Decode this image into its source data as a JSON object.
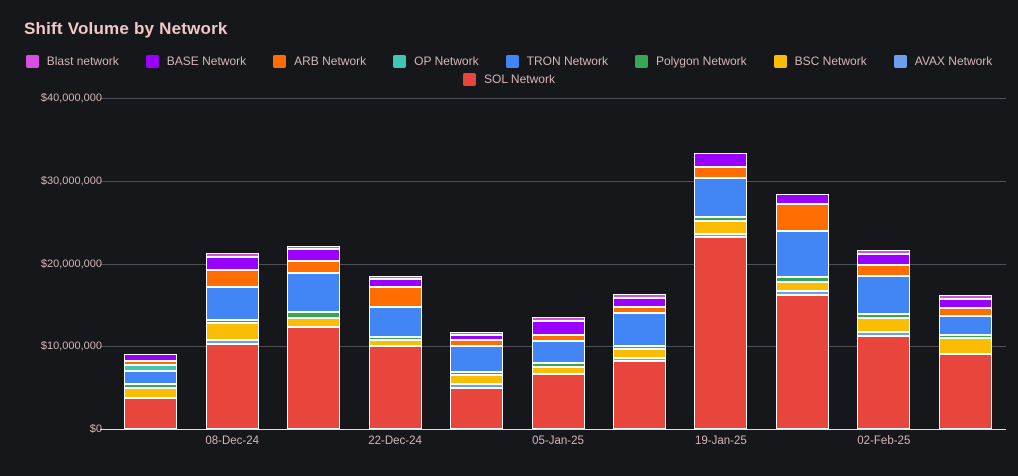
{
  "colors": {
    "background": "#16171b",
    "title_text": "#f0c8c6",
    "label_text": "#d3b6b6",
    "gridline": "#4d5057",
    "zero_axis_line": "#e0e1e4",
    "segment_border": "#ffffff"
  },
  "chart_data": {
    "type": "bar",
    "stacked": true,
    "title": "Shift Volume by Network",
    "xlabel": "",
    "ylabel": "",
    "ylim": [
      0,
      40000000
    ],
    "grid": true,
    "legend_position": "top",
    "ytick_values": [
      0,
      10000000,
      20000000,
      30000000,
      40000000
    ],
    "ytick_labels": [
      "$0",
      "$10,000,000",
      "$20,000,000",
      "$30,000,000",
      "$40,000,000"
    ],
    "categories": [
      "",
      "08-Dec-24",
      "",
      "22-Dec-24",
      "",
      "05-Jan-25",
      "",
      "19-Jan-25",
      "",
      "02-Feb-25",
      ""
    ],
    "legend_rows": [
      [
        0,
        1,
        2,
        3,
        4,
        5,
        6,
        7
      ],
      [
        8
      ]
    ],
    "stack_order_note": "series listed top-to-bottom of stack; legend shows same order",
    "series": [
      {
        "name": "Blast network",
        "color": "#d64fdf",
        "values": [
          0,
          350000,
          300000,
          350000,
          200000,
          250000,
          250000,
          0,
          0,
          200000,
          150000
        ]
      },
      {
        "name": "BASE Network",
        "color": "#9900ff",
        "values": [
          800000,
          1600000,
          1450000,
          950000,
          550000,
          1650000,
          1100000,
          1700000,
          1250000,
          1400000,
          1150000
        ]
      },
      {
        "name": "ARB Network",
        "color": "#ff6d00",
        "values": [
          500000,
          2100000,
          1450000,
          2400000,
          800000,
          800000,
          750000,
          1250000,
          3200000,
          1300000,
          900000
        ]
      },
      {
        "name": "OP Network",
        "color": "#41c5b4",
        "values": [
          750000,
          0,
          0,
          0,
          0,
          0,
          0,
          0,
          0,
          0,
          0
        ]
      },
      {
        "name": "TRON Network",
        "color": "#4285f4",
        "values": [
          1600000,
          3900000,
          4600000,
          3550000,
          3100000,
          2700000,
          4000000,
          4700000,
          5600000,
          4600000,
          2300000
        ]
      },
      {
        "name": "Polygon Network",
        "color": "#34a853",
        "values": [
          250000,
          350000,
          750000,
          300000,
          200000,
          300000,
          200000,
          550000,
          650000,
          450000,
          350000
        ]
      },
      {
        "name": "BSC Network",
        "color": "#fbbc04",
        "values": [
          1300000,
          2000000,
          1150000,
          750000,
          1050000,
          800000,
          1000000,
          1500000,
          1100000,
          1700000,
          1850000
        ]
      },
      {
        "name": "AVAX Network",
        "color": "#6d9eeb",
        "values": [
          0,
          500000,
          0,
          0,
          200000,
          0,
          200000,
          400000,
          250000,
          400000,
          0
        ]
      },
      {
        "name": "SOL Network",
        "color": "#e8463c",
        "values": [
          3700000,
          10300000,
          12300000,
          10000000,
          5000000,
          6700000,
          8200000,
          23200000,
          16200000,
          11300000,
          9100000
        ]
      }
    ]
  }
}
